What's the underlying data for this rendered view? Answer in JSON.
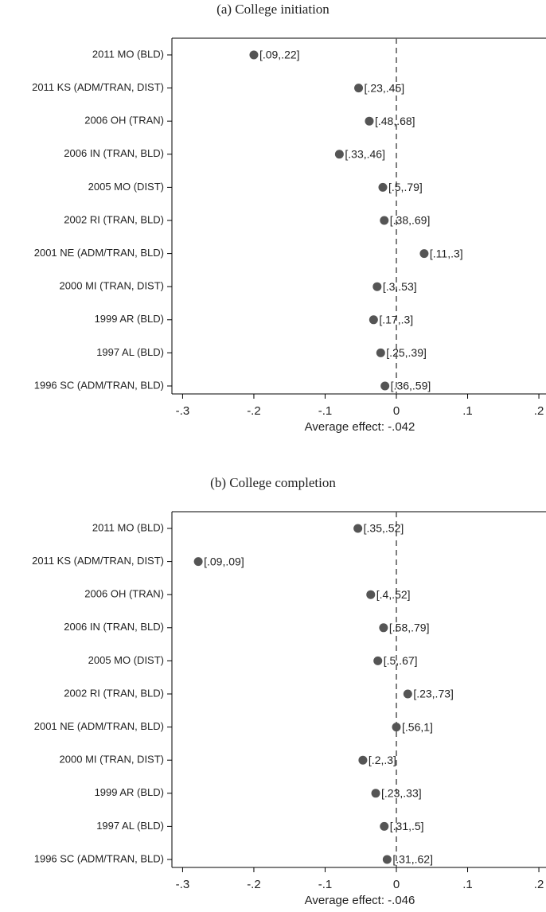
{
  "chart_data": [
    {
      "type": "dot",
      "title": "(a) College initiation",
      "xlabel": "Average effect: -.042",
      "categories": [
        "2011 MO (BLD)",
        "2011 KS (ADM/TRAN, DIST)",
        "2006 OH (TRAN)",
        "2006 IN (TRAN, BLD)",
        "2005 MO (DIST)",
        "2002 RI (TRAN, BLD)",
        "2001 NE (ADM/TRAN, BLD)",
        "2000 MI (TRAN, DIST)",
        "1999 AR (BLD)",
        "1997 AL (BLD)",
        "1996 SC (ADM/TRAN, BLD)"
      ],
      "values": [
        -0.2,
        -0.053,
        -0.038,
        -0.08,
        -0.019,
        -0.017,
        0.039,
        -0.027,
        -0.032,
        -0.022,
        -0.016
      ],
      "point_labels": [
        "[.09,.22]",
        "[.23,.45]",
        "[.48,.68]",
        "[.33,.46]",
        "[.5,.79]",
        "[.38,.69]",
        "[.11,.3]",
        "[.3,.53]",
        "[.17,.3]",
        "[.25,.39]",
        "[.36,.59]"
      ],
      "color": "#555555",
      "reference_line": 0,
      "xlim": [
        -0.315,
        0.21
      ],
      "xticks": [
        {
          "value": -0.3,
          "label": "-.3"
        },
        {
          "value": -0.2,
          "label": "-.2"
        },
        {
          "value": -0.1,
          "label": "-.1"
        },
        0,
        {
          "value": 0.1,
          "label": ".1"
        },
        {
          "value": 0.2,
          "label": ".2"
        }
      ]
    },
    {
      "type": "dot",
      "title": "(b) College completion",
      "xlabel": "Average effect: -.046",
      "categories": [
        "2011 MO (BLD)",
        "2011 KS (ADM/TRAN, DIST)",
        "2006 OH (TRAN)",
        "2006 IN (TRAN, BLD)",
        "2005 MO (DIST)",
        "2002 RI (TRAN, BLD)",
        "2001 NE (ADM/TRAN, BLD)",
        "2000 MI (TRAN, DIST)",
        "1999 AR (BLD)",
        "1997 AL (BLD)",
        "1996 SC (ADM/TRAN, BLD)"
      ],
      "values": [
        -0.054,
        -0.278,
        -0.036,
        -0.018,
        -0.026,
        0.016,
        0.0,
        -0.047,
        -0.029,
        -0.017,
        -0.013
      ],
      "point_labels": [
        "[.35,.52]",
        "[.09,.09]",
        "[.4,.52]",
        "[.58,.79]",
        "[.5,.67]",
        "[.23,.73]",
        "[.56,1]",
        "[.2,.3]",
        "[.23,.33]",
        "[.31,.5]",
        "[.31,.62]"
      ],
      "color": "#555555",
      "reference_line": 0,
      "xlim": [
        -0.315,
        0.21
      ],
      "xticks": [
        {
          "value": -0.3,
          "label": "-.3"
        },
        {
          "value": -0.2,
          "label": "-.2"
        },
        {
          "value": -0.1,
          "label": "-.1"
        },
        0,
        {
          "value": 0.1,
          "label": ".1"
        },
        {
          "value": 0.2,
          "label": ".2"
        }
      ]
    }
  ]
}
